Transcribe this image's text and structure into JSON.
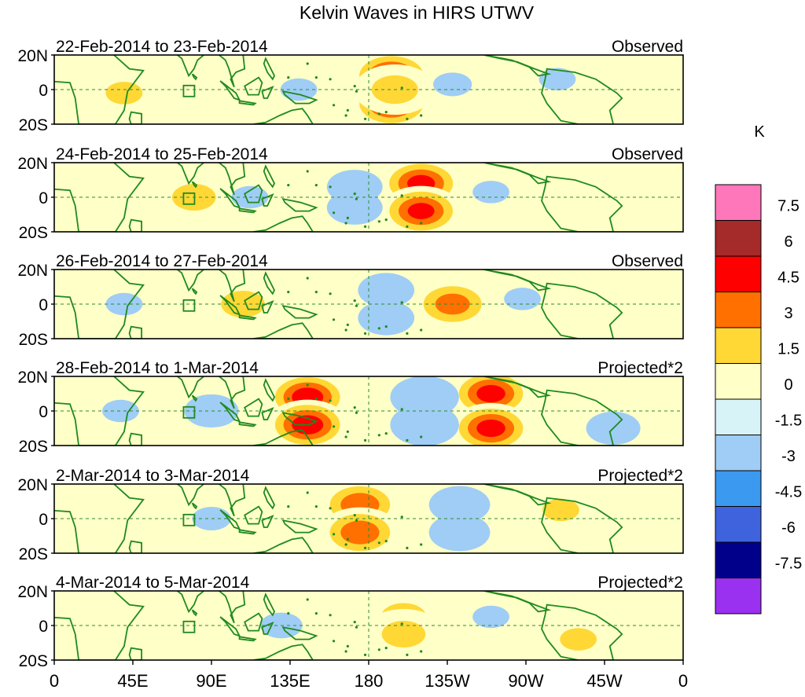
{
  "chart_data": {
    "type": "heatmap",
    "title": "Kelvin Waves in HIRS UTWV",
    "xlabel": "",
    "ylabel": "",
    "x_ticks": [
      "0",
      "45E",
      "90E",
      "135E",
      "180",
      "135W",
      "90W",
      "45W",
      "0"
    ],
    "y_ticks": [
      "20N",
      "0",
      "20S"
    ],
    "xlim_deg_east": [
      0,
      360
    ],
    "ylim_deg_lat": [
      -20,
      20
    ],
    "colorbar": {
      "unit": "K",
      "levels": [
        "7.5",
        "6",
        "4.5",
        "3",
        "1.5",
        "0",
        "-1.5",
        "-3",
        "-4.5",
        "-6",
        "-7.5"
      ],
      "colors": [
        "#ff77bb",
        "#a52a2a",
        "#ff0000",
        "#ff7000",
        "#ffd835",
        "#ffffc8",
        "#d8f3f8",
        "#9fcdf5",
        "#3b99f0",
        "#3e63dc",
        "#00008b",
        "#9a30f0"
      ]
    },
    "panels": [
      {
        "date": "22-Feb-2014 to 23-Feb-2014",
        "label": "Observed",
        "anomalies": [
          {
            "lon": 193,
            "lat": 8,
            "value": 5.0
          },
          {
            "lon": 193,
            "lat": -8,
            "value": 5.0
          },
          {
            "lon": 195,
            "lat": 0,
            "value": 2.2
          },
          {
            "lon": 40,
            "lat": -2,
            "value": 1.6
          },
          {
            "lon": 140,
            "lat": 0,
            "value": -1.6
          },
          {
            "lon": 228,
            "lat": 3,
            "value": -1.7
          },
          {
            "lon": 288,
            "lat": 6,
            "value": -1.6
          },
          {
            "lon": 315,
            "lat": 0,
            "value": -1.5
          }
        ]
      },
      {
        "date": "24-Feb-2014 to 25-Feb-2014",
        "label": "Observed",
        "anomalies": [
          {
            "lon": 210,
            "lat": 8,
            "value": 4.9
          },
          {
            "lon": 210,
            "lat": -8,
            "value": 4.8
          },
          {
            "lon": 80,
            "lat": 0,
            "value": 2.0
          },
          {
            "lon": 172,
            "lat": 6,
            "value": -3.2
          },
          {
            "lon": 172,
            "lat": -6,
            "value": -3.2
          },
          {
            "lon": 112,
            "lat": 0,
            "value": -1.6
          },
          {
            "lon": 250,
            "lat": 3,
            "value": -1.6
          }
        ]
      },
      {
        "date": "26-Feb-2014 to 27-Feb-2014",
        "label": "Observed",
        "anomalies": [
          {
            "lon": 228,
            "lat": 0,
            "value": 3.6
          },
          {
            "lon": 108,
            "lat": 0,
            "value": 2.0
          },
          {
            "lon": 190,
            "lat": 8,
            "value": -3.3
          },
          {
            "lon": 190,
            "lat": -8,
            "value": -3.3
          },
          {
            "lon": 40,
            "lat": 0,
            "value": -1.6
          },
          {
            "lon": 268,
            "lat": 3,
            "value": -1.6
          }
        ]
      },
      {
        "date": "28-Feb-2014 to 1-Mar-2014",
        "label": "Projected*2",
        "anomalies": [
          {
            "lon": 145,
            "lat": 8,
            "value": 5.3
          },
          {
            "lon": 145,
            "lat": -8,
            "value": 5.3
          },
          {
            "lon": 250,
            "lat": 10,
            "value": 5.0
          },
          {
            "lon": 250,
            "lat": -10,
            "value": 5.0
          },
          {
            "lon": 212,
            "lat": 8,
            "value": -7.0
          },
          {
            "lon": 212,
            "lat": -8,
            "value": -7.0
          },
          {
            "lon": 90,
            "lat": 0,
            "value": -3.0
          },
          {
            "lon": 38,
            "lat": 0,
            "value": -1.6
          },
          {
            "lon": 320,
            "lat": -10,
            "value": -3.0
          }
        ]
      },
      {
        "date": "2-Mar-2014 to 3-Mar-2014",
        "label": "Projected*2",
        "anomalies": [
          {
            "lon": 175,
            "lat": 8,
            "value": 4.0
          },
          {
            "lon": 175,
            "lat": -8,
            "value": 4.0
          },
          {
            "lon": 232,
            "lat": 8,
            "value": -4.2
          },
          {
            "lon": 232,
            "lat": -8,
            "value": -4.2
          },
          {
            "lon": 90,
            "lat": 0,
            "value": -1.7
          },
          {
            "lon": 290,
            "lat": 5,
            "value": 1.6
          }
        ]
      },
      {
        "date": "4-Mar-2014 to 5-Mar-2014",
        "label": "Projected*2",
        "anomalies": [
          {
            "lon": 200,
            "lat": 5,
            "value": 2.1
          },
          {
            "lon": 200,
            "lat": -5,
            "value": 2.0
          },
          {
            "lon": 130,
            "lat": 0,
            "value": -1.9
          },
          {
            "lon": 250,
            "lat": 5,
            "value": -1.6
          },
          {
            "lon": 300,
            "lat": -8,
            "value": 1.6
          }
        ]
      }
    ]
  }
}
